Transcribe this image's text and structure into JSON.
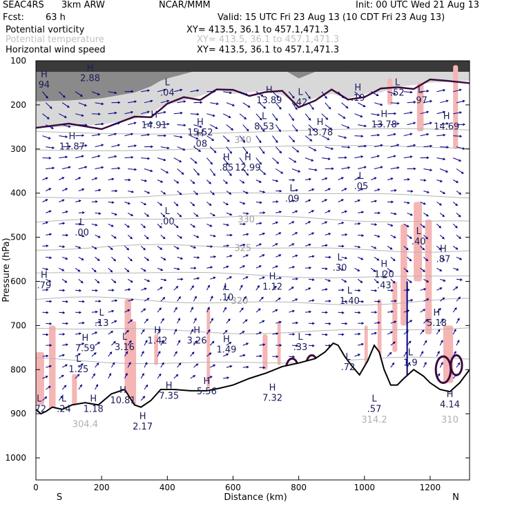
{
  "header": {
    "project": "SEAC4RS",
    "model": "3km ARW",
    "org": "NCAR/MMM",
    "init": "Init: 00 UTC Wed 21 Aug 13",
    "fcst_label": "Fcst:",
    "fcst_value": "63 h",
    "valid": "Valid: 15 UTC Fri 23 Aug 13 (10 CDT Fri 23 Aug 13)"
  },
  "legend": [
    {
      "name": "Potential vorticity",
      "xy": "XY= 413.5, 36.1 to 457.1,471.3",
      "color": "#000000"
    },
    {
      "name": "Potential temperature",
      "xy": "XY= 413.5, 36.1 to 457.1,471.3",
      "color": "#c8c8c8"
    },
    {
      "name": "Horizontal wind speed",
      "xy": "XY= 413.5, 36.1 to 457.1,471.3",
      "color": "#000080"
    }
  ],
  "colors": {
    "pv_contour": "#3c0a3c",
    "theta_contour": "#b4b4b4",
    "wind_arrow": "#000080",
    "pv_fill": "#f5b5b5",
    "terrain": "#000000"
  },
  "chart_data": {
    "type": "cross-section",
    "xlabel": "Distance (km)",
    "ylabel": "Pressure (hPa)",
    "xlim": [
      0,
      1320
    ],
    "ylim": [
      1050,
      100
    ],
    "x_ticks": [
      0,
      200,
      400,
      600,
      800,
      1000,
      1200
    ],
    "y_ticks": [
      100,
      200,
      300,
      400,
      500,
      600,
      700,
      800,
      900,
      1000
    ],
    "end_labels": {
      "left": "S",
      "right": "N"
    },
    "theta_contours": [
      {
        "label": "340",
        "x": 630,
        "p": 280
      },
      {
        "label": "330",
        "x": 640,
        "p": 460
      },
      {
        "label": "325",
        "x": 630,
        "p": 525
      },
      {
        "label": "320",
        "x": 620,
        "p": 645
      }
    ],
    "pv_extrema": [
      {
        "type": "H",
        "x": 110,
        "p": 290,
        "value": "11.87"
      },
      {
        "type": "H",
        "x": 360,
        "p": 242,
        "value": "14.91"
      },
      {
        "type": "H",
        "x": 500,
        "p": 258,
        "value": "15.52"
      },
      {
        "type": "H",
        "x": 500,
        "p": 284,
        "value": ".08"
      },
      {
        "type": "H",
        "x": 710,
        "p": 185,
        "value": "13.89"
      },
      {
        "type": "H",
        "x": 865,
        "p": 258,
        "value": "13.78"
      },
      {
        "type": "H",
        "x": 1060,
        "p": 240,
        "value": "13.78"
      },
      {
        "type": "H",
        "x": 1250,
        "p": 245,
        "value": "14.69"
      },
      {
        "type": "H",
        "x": 580,
        "p": 338,
        "value": ".85"
      },
      {
        "type": "H",
        "x": 645,
        "p": 338,
        "value": "12.99"
      },
      {
        "type": "L",
        "x": 695,
        "p": 245,
        "value": "8.53"
      },
      {
        "type": "L",
        "x": 990,
        "p": 380,
        "value": ".05"
      },
      {
        "type": "L",
        "x": 780,
        "p": 408,
        "value": ".09"
      },
      {
        "type": "L",
        "x": 400,
        "p": 460,
        "value": ".00"
      },
      {
        "type": "L",
        "x": 140,
        "p": 485,
        "value": ".00"
      },
      {
        "type": "L",
        "x": 1165,
        "p": 505,
        "value": ".40"
      },
      {
        "type": "H",
        "x": 1240,
        "p": 545,
        "value": ".87"
      },
      {
        "type": "L",
        "x": 925,
        "p": 565,
        "value": ".30"
      },
      {
        "type": "H",
        "x": 1060,
        "p": 580,
        "value": "1.20"
      },
      {
        "type": "L",
        "x": 1060,
        "p": 605,
        "value": ".43"
      },
      {
        "type": "H",
        "x": 25,
        "p": 605,
        "value": ".79"
      },
      {
        "type": "H",
        "x": 720,
        "p": 608,
        "value": "1.12"
      },
      {
        "type": "L",
        "x": 580,
        "p": 632,
        "value": ".10"
      },
      {
        "type": "L",
        "x": 955,
        "p": 640,
        "value": "1.40"
      },
      {
        "type": "L",
        "x": 200,
        "p": 690,
        "value": ".13"
      },
      {
        "type": "H",
        "x": 1220,
        "p": 690,
        "value": "5.18"
      },
      {
        "type": "H",
        "x": 150,
        "p": 747,
        "value": "7.59"
      },
      {
        "type": "L",
        "x": 270,
        "p": 745,
        "value": "3.16"
      },
      {
        "type": "H",
        "x": 370,
        "p": 730,
        "value": "1.42"
      },
      {
        "type": "H",
        "x": 490,
        "p": 730,
        "value": "3.26"
      },
      {
        "type": "H",
        "x": 580,
        "p": 750,
        "value": "1.49"
      },
      {
        "type": "L",
        "x": 805,
        "p": 745,
        "value": ".33"
      },
      {
        "type": "L",
        "x": 130,
        "p": 795,
        "value": "1.25"
      },
      {
        "type": "H",
        "x": 405,
        "p": 855,
        "value": "7.35"
      },
      {
        "type": "H",
        "x": 520,
        "p": 845,
        "value": "5.56"
      },
      {
        "type": "L",
        "x": 950,
        "p": 790,
        "value": ".72"
      },
      {
        "type": "L",
        "x": 1140,
        "p": 780,
        "value": "1.9"
      },
      {
        "type": "L",
        "x": 10,
        "p": 885,
        "value": ".72"
      },
      {
        "type": "L",
        "x": 85,
        "p": 885,
        "value": ".24"
      },
      {
        "type": "H",
        "x": 175,
        "p": 885,
        "value": "1.18"
      },
      {
        "type": "H",
        "x": 265,
        "p": 865,
        "value": "10.81"
      },
      {
        "type": "H",
        "x": 325,
        "p": 925,
        "value": "2.17"
      },
      {
        "type": "L",
        "x": 1030,
        "p": 885,
        "value": ".57"
      },
      {
        "type": "H",
        "x": 720,
        "p": 860,
        "value": "7.32"
      },
      {
        "type": "H",
        "x": 1260,
        "p": 875,
        "value": "4.14"
      },
      {
        "type": "H",
        "x": 165,
        "p": 135,
        "value": "2.88"
      },
      {
        "type": "H",
        "x": 25,
        "p": 150,
        "value": "94"
      },
      {
        "type": "L",
        "x": 400,
        "p": 168,
        "value": ".04"
      },
      {
        "type": "L",
        "x": 805,
        "p": 190,
        "value": ".42"
      },
      {
        "type": "H",
        "x": 980,
        "p": 180,
        "value": ".19"
      },
      {
        "type": "L",
        "x": 1100,
        "p": 168,
        "value": ".52"
      },
      {
        "type": "L",
        "x": 1170,
        "p": 185,
        "value": ".97"
      }
    ],
    "surface_labels": [
      {
        "x": 150,
        "p": 930,
        "value": "304.4"
      },
      {
        "x": 1030,
        "p": 920,
        "value": "314.2"
      },
      {
        "x": 1260,
        "p": 920,
        "value": "310"
      }
    ]
  }
}
